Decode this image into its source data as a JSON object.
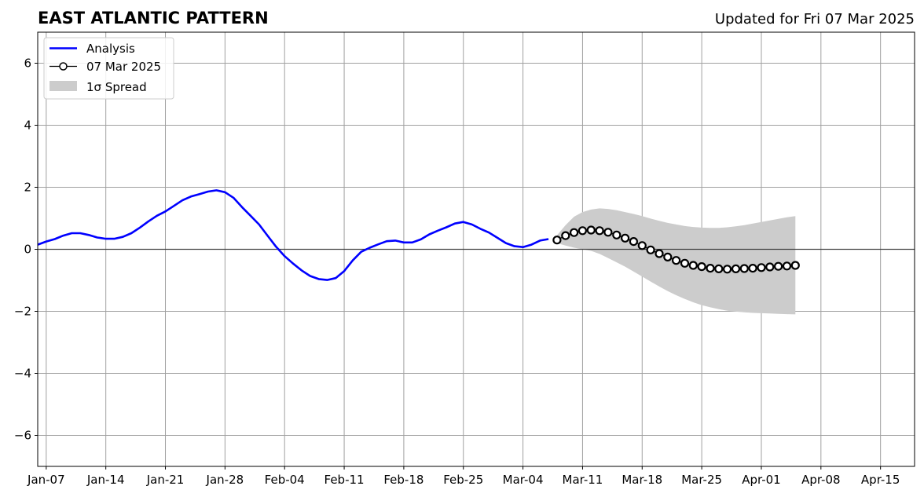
{
  "title": "EAST ATLANTIC PATTERN",
  "subtitle": "Updated for Fri 07 Mar 2025",
  "chart_data": {
    "type": "line",
    "x_ticks": [
      "Jan-07",
      "Jan-14",
      "Jan-21",
      "Jan-28",
      "Feb-04",
      "Feb-11",
      "Feb-18",
      "Feb-25",
      "Mar-04",
      "Mar-11",
      "Mar-18",
      "Mar-25",
      "Apr-01",
      "Apr-08",
      "Apr-15"
    ],
    "y_ticks": [
      "−6",
      "−4",
      "−2",
      "0",
      "2",
      "4",
      "6"
    ],
    "xlim": [
      "2025-01-06",
      "2025-04-19"
    ],
    "ylim": [
      -7,
      7
    ],
    "grid": true,
    "zero_line": true,
    "legend": {
      "position": "upper-left",
      "entries": [
        {
          "label": "Analysis",
          "color": "#0000ff"
        },
        {
          "label": "07 Mar 2025",
          "color": "#000000"
        },
        {
          "label": "1σ Spread",
          "color": "#cccccc"
        }
      ]
    },
    "series": [
      {
        "name": "Analysis",
        "color": "#0000ff",
        "points": [
          [
            "2025-01-06",
            0.15
          ],
          [
            "2025-01-07",
            0.25
          ],
          [
            "2025-01-08",
            0.33
          ],
          [
            "2025-01-09",
            0.44
          ],
          [
            "2025-01-10",
            0.52
          ],
          [
            "2025-01-11",
            0.52
          ],
          [
            "2025-01-12",
            0.46
          ],
          [
            "2025-01-13",
            0.38
          ],
          [
            "2025-01-14",
            0.34
          ],
          [
            "2025-01-15",
            0.34
          ],
          [
            "2025-01-16",
            0.4
          ],
          [
            "2025-01-17",
            0.52
          ],
          [
            "2025-01-18",
            0.7
          ],
          [
            "2025-01-19",
            0.9
          ],
          [
            "2025-01-20",
            1.08
          ],
          [
            "2025-01-21",
            1.22
          ],
          [
            "2025-01-22",
            1.4
          ],
          [
            "2025-01-23",
            1.58
          ],
          [
            "2025-01-24",
            1.7
          ],
          [
            "2025-01-25",
            1.78
          ],
          [
            "2025-01-26",
            1.86
          ],
          [
            "2025-01-27",
            1.9
          ],
          [
            "2025-01-28",
            1.84
          ],
          [
            "2025-01-29",
            1.66
          ],
          [
            "2025-01-30",
            1.36
          ],
          [
            "2025-01-31",
            1.08
          ],
          [
            "2025-02-01",
            0.8
          ],
          [
            "2025-02-02",
            0.44
          ],
          [
            "2025-02-03",
            0.08
          ],
          [
            "2025-02-04",
            -0.22
          ],
          [
            "2025-02-05",
            -0.46
          ],
          [
            "2025-02-06",
            -0.68
          ],
          [
            "2025-02-07",
            -0.86
          ],
          [
            "2025-02-08",
            -0.96
          ],
          [
            "2025-02-09",
            -0.99
          ],
          [
            "2025-02-10",
            -0.93
          ],
          [
            "2025-02-11",
            -0.7
          ],
          [
            "2025-02-12",
            -0.36
          ],
          [
            "2025-02-13",
            -0.08
          ],
          [
            "2025-02-14",
            0.05
          ],
          [
            "2025-02-15",
            0.16
          ],
          [
            "2025-02-16",
            0.26
          ],
          [
            "2025-02-17",
            0.28
          ],
          [
            "2025-02-18",
            0.22
          ],
          [
            "2025-02-19",
            0.22
          ],
          [
            "2025-02-20",
            0.32
          ],
          [
            "2025-02-21",
            0.48
          ],
          [
            "2025-02-22",
            0.6
          ],
          [
            "2025-02-23",
            0.71
          ],
          [
            "2025-02-24",
            0.83
          ],
          [
            "2025-02-25",
            0.88
          ],
          [
            "2025-02-26",
            0.8
          ],
          [
            "2025-02-27",
            0.66
          ],
          [
            "2025-02-28",
            0.54
          ],
          [
            "2025-03-01",
            0.37
          ],
          [
            "2025-03-02",
            0.2
          ],
          [
            "2025-03-03",
            0.1
          ],
          [
            "2025-03-04",
            0.07
          ],
          [
            "2025-03-05",
            0.15
          ],
          [
            "2025-03-06",
            0.28
          ],
          [
            "2025-03-07",
            0.33
          ]
        ]
      },
      {
        "name": "07 Mar 2025",
        "color": "#000000",
        "marker": "circle",
        "points": [
          [
            "2025-03-08",
            0.3
          ],
          [
            "2025-03-09",
            0.44
          ],
          [
            "2025-03-10",
            0.54
          ],
          [
            "2025-03-11",
            0.6
          ],
          [
            "2025-03-12",
            0.62
          ],
          [
            "2025-03-13",
            0.6
          ],
          [
            "2025-03-14",
            0.55
          ],
          [
            "2025-03-15",
            0.46
          ],
          [
            "2025-03-16",
            0.36
          ],
          [
            "2025-03-17",
            0.25
          ],
          [
            "2025-03-18",
            0.12
          ],
          [
            "2025-03-19",
            -0.02
          ],
          [
            "2025-03-20",
            -0.14
          ],
          [
            "2025-03-21",
            -0.25
          ],
          [
            "2025-03-22",
            -0.36
          ],
          [
            "2025-03-23",
            -0.45
          ],
          [
            "2025-03-24",
            -0.52
          ],
          [
            "2025-03-25",
            -0.56
          ],
          [
            "2025-03-26",
            -0.61
          ],
          [
            "2025-03-27",
            -0.63
          ],
          [
            "2025-03-28",
            -0.64
          ],
          [
            "2025-03-29",
            -0.63
          ],
          [
            "2025-03-30",
            -0.62
          ],
          [
            "2025-03-31",
            -0.61
          ],
          [
            "2025-04-01",
            -0.59
          ],
          [
            "2025-04-02",
            -0.57
          ],
          [
            "2025-04-03",
            -0.55
          ],
          [
            "2025-04-04",
            -0.54
          ],
          [
            "2025-04-05",
            -0.52
          ]
        ]
      }
    ],
    "spread": {
      "name": "1σ Spread",
      "color": "#cccccc",
      "points": [
        [
          "2025-03-08",
          0.2,
          0.45
        ],
        [
          "2025-03-09",
          0.12,
          0.78
        ],
        [
          "2025-03-10",
          0.05,
          1.05
        ],
        [
          "2025-03-11",
          0.0,
          1.2
        ],
        [
          "2025-03-12",
          -0.05,
          1.28
        ],
        [
          "2025-03-13",
          -0.15,
          1.32
        ],
        [
          "2025-03-14",
          -0.28,
          1.3
        ],
        [
          "2025-03-15",
          -0.42,
          1.26
        ],
        [
          "2025-03-16",
          -0.56,
          1.2
        ],
        [
          "2025-03-17",
          -0.72,
          1.14
        ],
        [
          "2025-03-18",
          -0.88,
          1.07
        ],
        [
          "2025-03-19",
          -1.04,
          0.99
        ],
        [
          "2025-03-20",
          -1.2,
          0.92
        ],
        [
          "2025-03-21",
          -1.35,
          0.85
        ],
        [
          "2025-03-22",
          -1.48,
          0.8
        ],
        [
          "2025-03-23",
          -1.6,
          0.75
        ],
        [
          "2025-03-24",
          -1.71,
          0.72
        ],
        [
          "2025-03-25",
          -1.8,
          0.7
        ],
        [
          "2025-03-26",
          -1.87,
          0.69
        ],
        [
          "2025-03-27",
          -1.93,
          0.69
        ],
        [
          "2025-03-28",
          -1.98,
          0.71
        ],
        [
          "2025-03-29",
          -2.01,
          0.74
        ],
        [
          "2025-03-30",
          -2.03,
          0.78
        ],
        [
          "2025-03-31",
          -2.05,
          0.83
        ],
        [
          "2025-04-01",
          -2.06,
          0.88
        ],
        [
          "2025-04-02",
          -2.07,
          0.93
        ],
        [
          "2025-04-03",
          -2.08,
          0.98
        ],
        [
          "2025-04-04",
          -2.09,
          1.03
        ],
        [
          "2025-04-05",
          -2.1,
          1.07
        ]
      ]
    }
  }
}
